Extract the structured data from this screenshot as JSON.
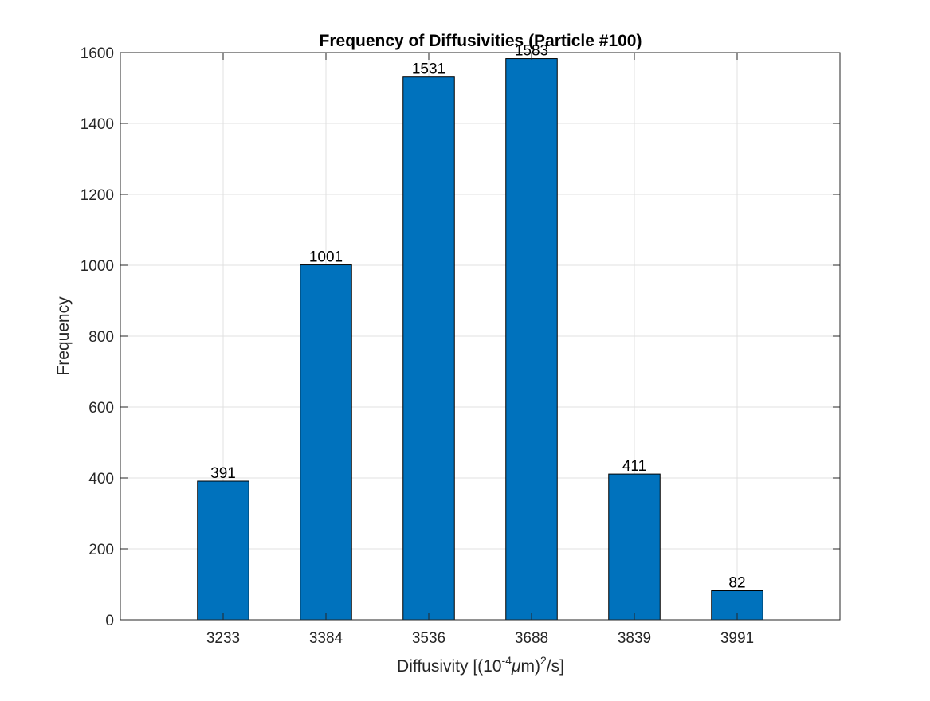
{
  "chart_data": {
    "type": "bar",
    "title": "Frequency of Diffusivities (Particle #100)",
    "xlabel": "Diffusivity [(10",
    "xlabel_sup1": "-4",
    "xlabel_mu": "μ",
    "xlabel_mid": "m)",
    "xlabel_sup2": "2",
    "xlabel_end": "/s]",
    "ylabel": "Frequency",
    "categories": [
      "3233",
      "3384",
      "3536",
      "3688",
      "3839",
      "3991"
    ],
    "values": [
      391,
      1001,
      1531,
      1583,
      411,
      82
    ],
    "data_labels": [
      "391",
      "1001",
      "1531",
      "1583",
      "411",
      "82"
    ],
    "ylim": [
      0,
      1600
    ],
    "yticks": [
      0,
      200,
      400,
      600,
      800,
      1000,
      1200,
      1400,
      1600
    ],
    "grid": true,
    "legend": "none",
    "bar_color": "#0072BD",
    "grid_color": "#e0e0e0",
    "axis_color": "#262626"
  }
}
